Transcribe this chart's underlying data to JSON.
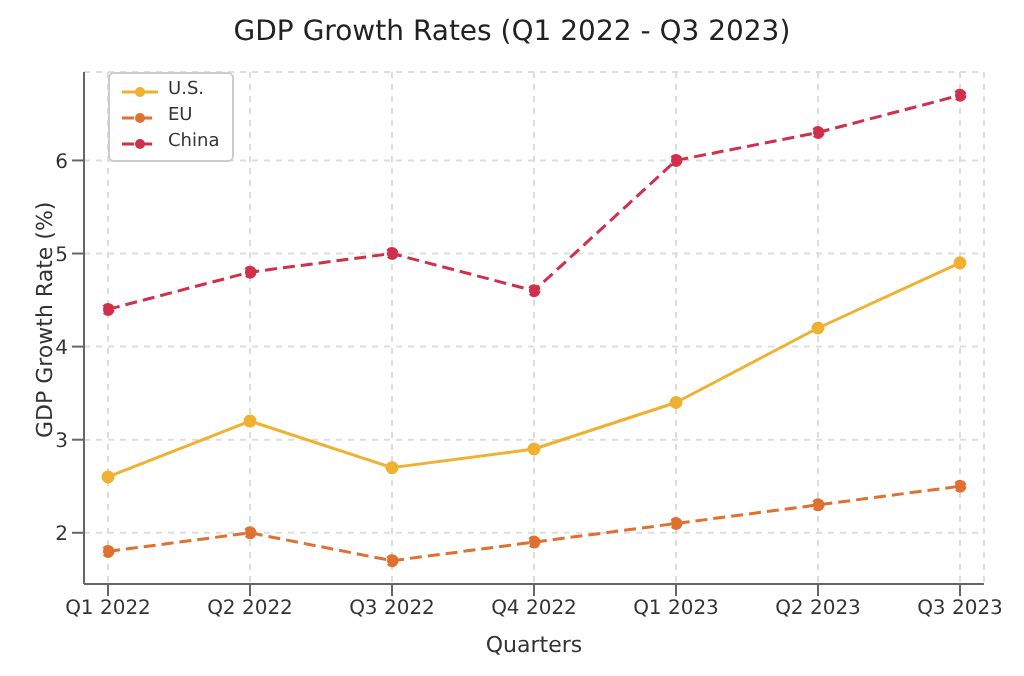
{
  "chart_data": {
    "type": "line",
    "title": "GDP Growth Rates (Q1 2022 - Q3 2023)",
    "xlabel": "Quarters",
    "ylabel": "GDP Growth Rate (%)",
    "categories": [
      "Q1 2022",
      "Q2 2022",
      "Q3 2022",
      "Q4 2022",
      "Q1 2023",
      "Q2 2023",
      "Q3 2023"
    ],
    "series": [
      {
        "name": "U.S.",
        "color": "#f0b030",
        "line_style": "solid",
        "values": [
          2.6,
          3.2,
          2.7,
          2.9,
          3.4,
          4.2,
          4.9
        ]
      },
      {
        "name": "EU",
        "color": "#e07030",
        "line_style": "dashed",
        "values": [
          1.8,
          2.0,
          1.7,
          1.9,
          2.1,
          2.3,
          2.5
        ]
      },
      {
        "name": "China",
        "color": "#d0304a",
        "line_style": "dashed",
        "values": [
          4.4,
          4.8,
          5.0,
          4.6,
          6.0,
          6.3,
          6.7
        ]
      }
    ],
    "ylim": [
      1.45,
      6.95
    ],
    "yticks": [
      2,
      3,
      4,
      5,
      6
    ],
    "grid": true,
    "legend": "top left",
    "marker": "circle"
  }
}
